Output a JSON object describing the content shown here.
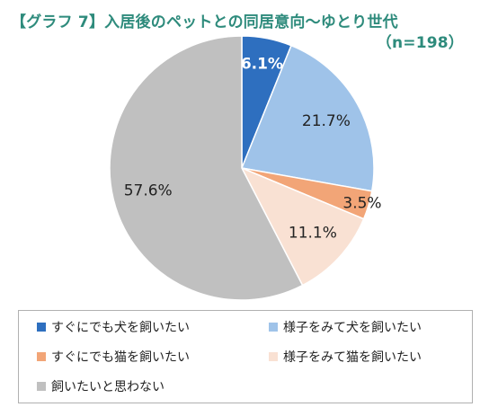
{
  "title": {
    "line1": "【グラフ 7】入居後のペットとの同居意向～ゆとり世代",
    "line2": "（n=198）"
  },
  "colors": {
    "title": "#2e8b7c",
    "legend_border": "#b0b0b0"
  },
  "chart_data": {
    "type": "pie",
    "title": "【グラフ 7】入居後のペットとの同居意向～ゆとり世代（n=198）",
    "start_angle_deg": 0,
    "direction": "clockwise",
    "legend_position": "bottom",
    "slices": [
      {
        "label": "すぐにでも犬を飼いたい",
        "value": 6.1,
        "display": "6.1%",
        "color": "#2e6fbf",
        "label_color": "#ffffff",
        "label_bold": true
      },
      {
        "label": "様子をみて犬を飼いたい",
        "value": 21.7,
        "display": "21.7%",
        "color": "#9fc3e9",
        "label_color": "#222222",
        "label_bold": false
      },
      {
        "label": "すぐにでも猫を飼いたい",
        "value": 3.5,
        "display": "3.5%",
        "color": "#f2a577",
        "label_color": "#222222",
        "label_bold": false
      },
      {
        "label": "様子をみて猫を飼いたい",
        "value": 11.1,
        "display": "11.1%",
        "color": "#f9e1d3",
        "label_color": "#222222",
        "label_bold": false
      },
      {
        "label": "飼いたいと思わない",
        "value": 57.6,
        "display": "57.6%",
        "color": "#c0c0c0",
        "label_color": "#222222",
        "label_bold": false
      }
    ]
  }
}
